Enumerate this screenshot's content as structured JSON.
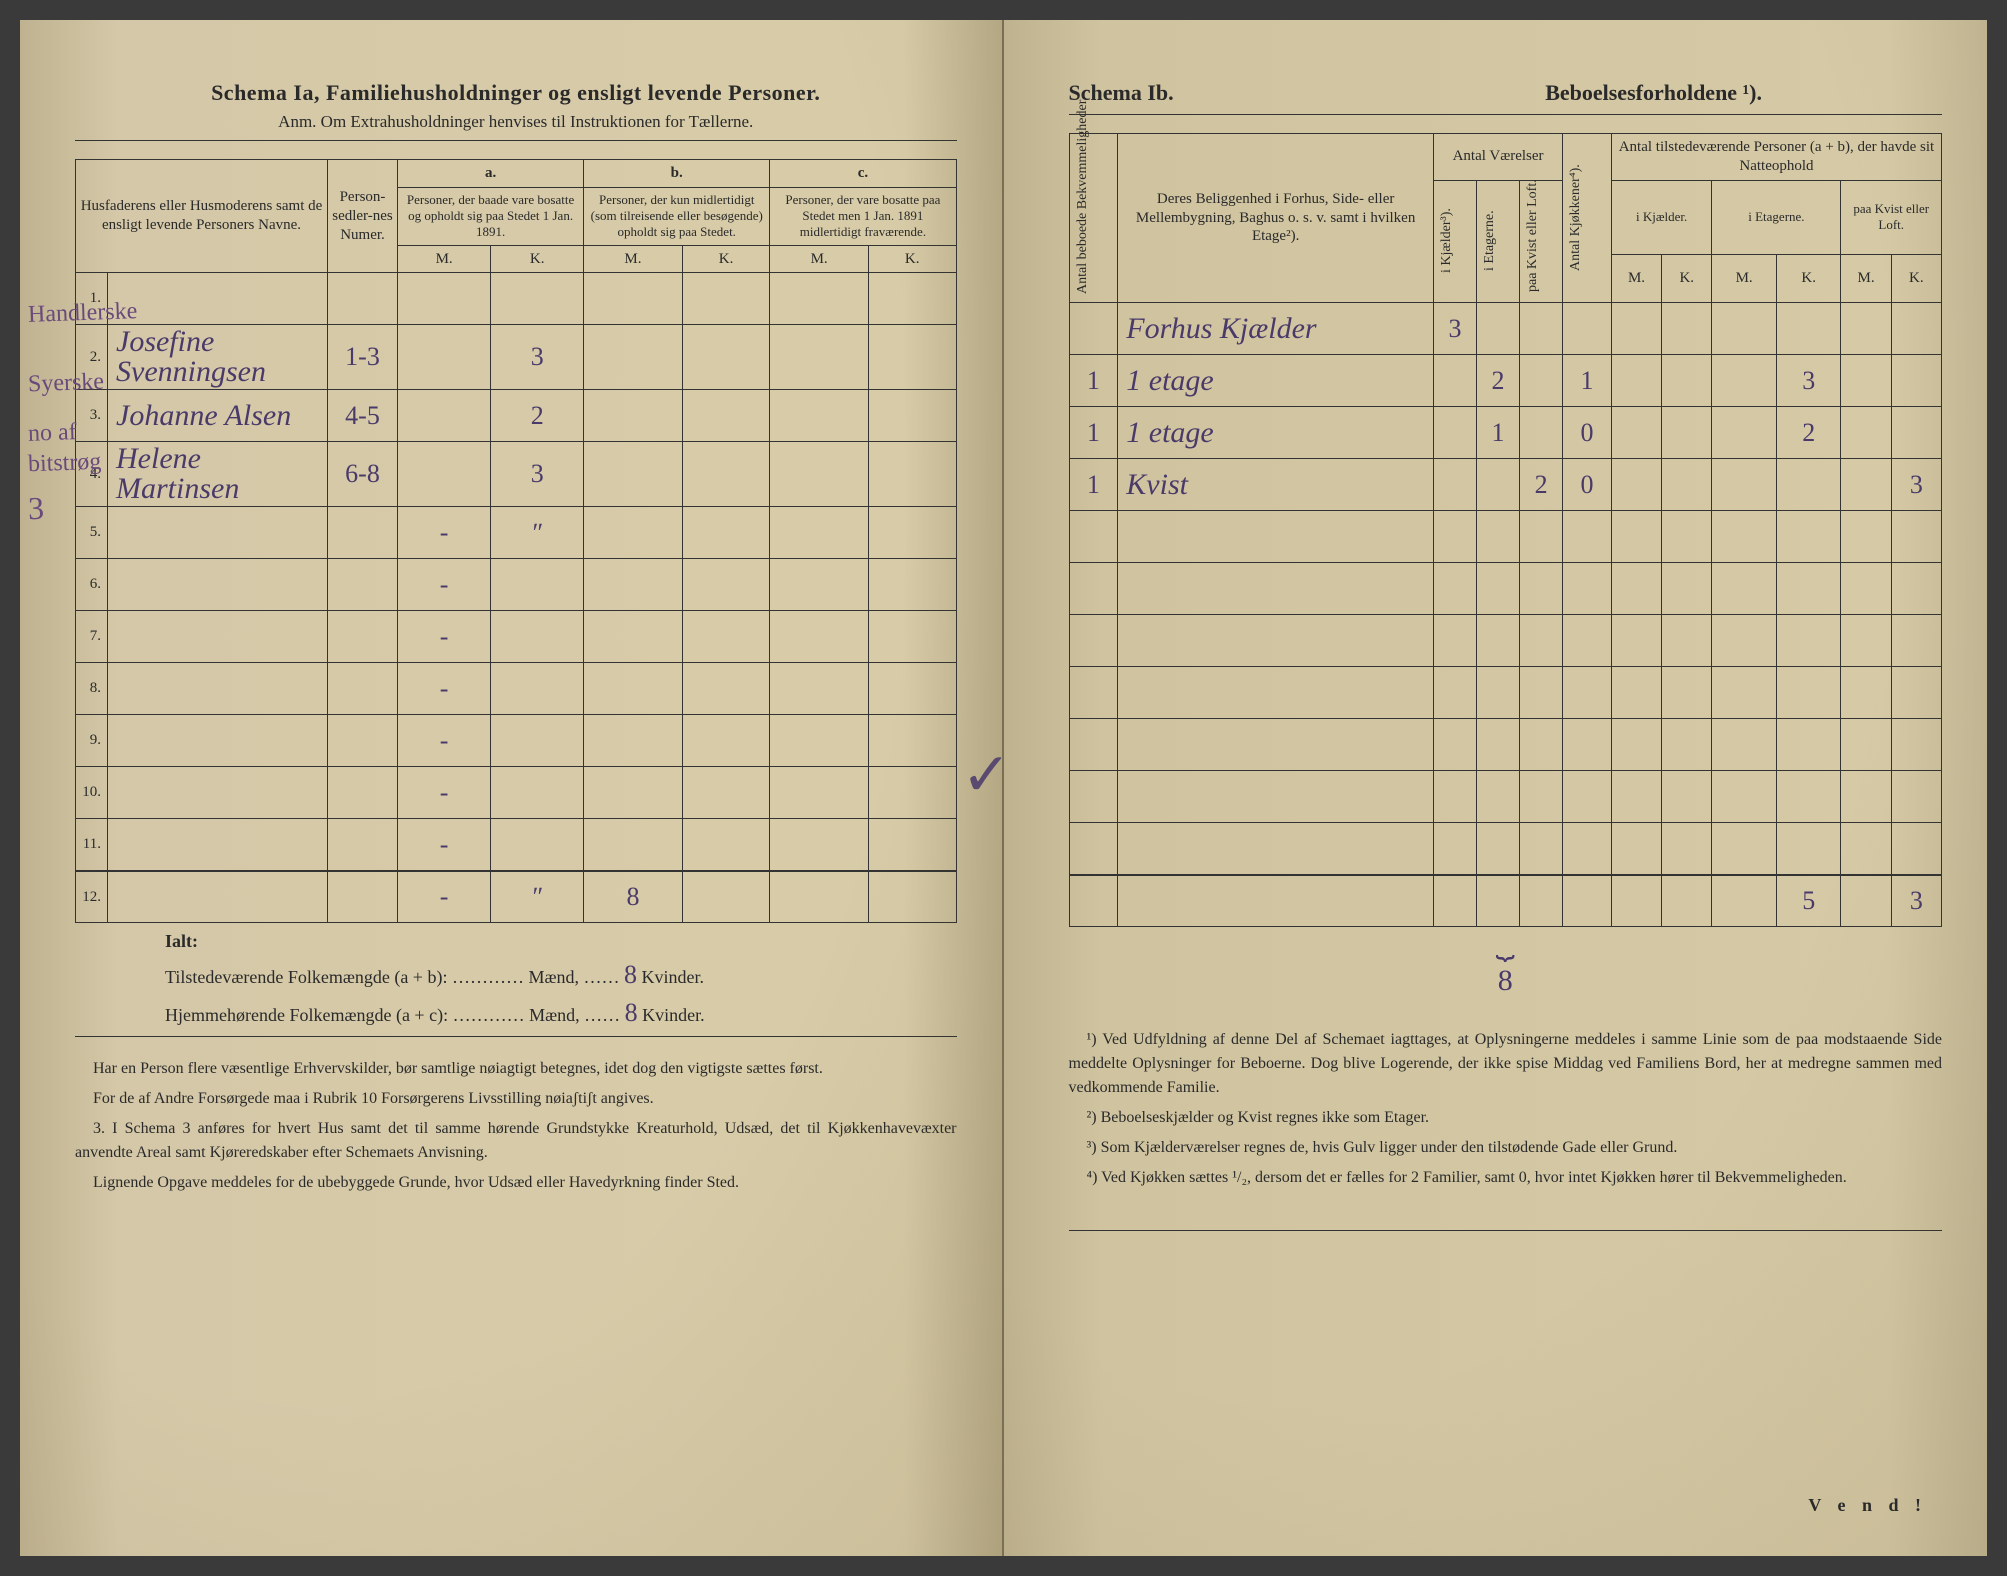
{
  "left": {
    "title": "Schema Ia,  Familiehusholdninger og ensligt levende Personer.",
    "subtitle": "Anm.  Om Extrahusholdninger henvises til Instruktionen for Tællerne.",
    "headers": {
      "name": "Husfaderens eller Husmoderens samt de ensligt levende Personers Navne.",
      "personsedler": "Person-sedler-nes Numer.",
      "a_label": "a.",
      "a": "Personer, der baade vare bosatte og opholdt sig paa Stedet 1 Jan. 1891.",
      "b_label": "b.",
      "b": "Personer, der kun midlertidigt (som tilreisende eller besøgende) opholdt sig paa Stedet.",
      "c_label": "c.",
      "c": "Personer, der vare bosatte paa Stedet men 1 Jan. 1891 midlertidigt fraværende.",
      "m": "M.",
      "k": "K."
    },
    "margin_notes": [
      "Handlerske",
      "Syerske",
      "no af",
      "bitstrøg",
      "3"
    ],
    "rows": [
      {
        "n": "1.",
        "name": "",
        "num": "",
        "a_m": "",
        "a_k": "",
        "b_m": "",
        "b_k": "",
        "c_m": "",
        "c_k": ""
      },
      {
        "n": "2.",
        "name": "Josefine Svenningsen",
        "num": "1-3",
        "a_m": "",
        "a_k": "3",
        "b_m": "",
        "b_k": "",
        "c_m": "",
        "c_k": ""
      },
      {
        "n": "3.",
        "name": "Johanne Alsen",
        "num": "4-5",
        "a_m": "",
        "a_k": "2",
        "b_m": "",
        "b_k": "",
        "c_m": "",
        "c_k": ""
      },
      {
        "n": "4.",
        "name": "Helene Martinsen",
        "num": "6-8",
        "a_m": "",
        "a_k": "3",
        "b_m": "",
        "b_k": "",
        "c_m": "",
        "c_k": ""
      },
      {
        "n": "5.",
        "name": "",
        "num": "",
        "a_m": "-",
        "a_k": "ʺ",
        "b_m": "",
        "b_k": "",
        "c_m": "",
        "c_k": ""
      },
      {
        "n": "6.",
        "name": "",
        "num": "",
        "a_m": "-",
        "a_k": "",
        "b_m": "",
        "b_k": "",
        "c_m": "",
        "c_k": ""
      },
      {
        "n": "7.",
        "name": "",
        "num": "",
        "a_m": "-",
        "a_k": "",
        "b_m": "",
        "b_k": "",
        "c_m": "",
        "c_k": ""
      },
      {
        "n": "8.",
        "name": "",
        "num": "",
        "a_m": "-",
        "a_k": "",
        "b_m": "",
        "b_k": "",
        "c_m": "",
        "c_k": ""
      },
      {
        "n": "9.",
        "name": "",
        "num": "",
        "a_m": "-",
        "a_k": "",
        "b_m": "",
        "b_k": "",
        "c_m": "",
        "c_k": ""
      },
      {
        "n": "10.",
        "name": "",
        "num": "",
        "a_m": "-",
        "a_k": "",
        "b_m": "",
        "b_k": "",
        "c_m": "",
        "c_k": ""
      },
      {
        "n": "11.",
        "name": "",
        "num": "",
        "a_m": "-",
        "a_k": "",
        "b_m": "",
        "b_k": "",
        "c_m": "",
        "c_k": ""
      },
      {
        "n": "12.",
        "name": "",
        "num": "",
        "a_m": "-",
        "a_k": "ʺ",
        "b_m": "8",
        "b_k": "",
        "c_m": "",
        "c_k": ""
      }
    ],
    "ialt_label": "Ialt:",
    "tilstede": "Tilstedeværende Folkemængde (a + b): ………… Mænd, ……",
    "tilstede_k": "8",
    "tilstede_end": " Kvinder.",
    "hjemme": "Hjemmehørende Folkemængde (a + c): ………… Mænd, ……",
    "hjemme_k": "8",
    "hjemme_end": " Kvinder.",
    "footer": [
      "Har en Person flere væsentlige Erhvervskilder, bør samtlige nøiagtigt betegnes, idet dog den vigtigste sættes først.",
      "For de af Andre Forsørgede maa i Rubrik 10 Forsørgerens Livsstilling nøiaʃtiʃt angives.",
      "3. I Schema 3 anføres for hvert Hus samt det til samme hørende Grundstykke Kreaturhold, Udsæd, det til Kjøkkenhavevæxter anvendte Areal samt Kjøreredskaber efter Schemaets Anvisning.",
      "Lignende Opgave meddeles for de ubebyggede Grunde, hvor Udsæd eller Havedyrkning finder Sted."
    ],
    "check": "✓"
  },
  "right": {
    "title_left": "Schema Ib.",
    "title_right": "Beboelsesforholdene ¹).",
    "headers": {
      "antal_beboede": "Antal beboede Bekvemmeligheder.",
      "beliggenhed": "Deres Beliggenhed i Forhus, Side- eller Mellembygning, Baghus o. s. v. samt i hvilken Etage²).",
      "antal_vaer": "Antal Værelser",
      "kjaelder": "i Kjælder³).",
      "etagerne": "i Etagerne.",
      "kvist": "paa Kvist eller Loft.",
      "kjokkener": "Antal Kjøkkener⁴).",
      "tilstede": "Antal tilstedeværende Personer (a + b), der havde sit Natteophold",
      "ikjaelder": "i Kjælder.",
      "ietagerne": "i Etagerne.",
      "paakvist": "paa Kvist eller Loft.",
      "m": "M.",
      "k": "K."
    },
    "rows": [
      {
        "bek": "",
        "bel": "Forhus Kjælder",
        "vk": "3",
        "ve": "",
        "vl": "",
        "kj": "",
        "km": "",
        "kk": "",
        "em": "",
        "ek": "",
        "lm": "",
        "lk": ""
      },
      {
        "bek": "1",
        "bel": "1 etage",
        "vk": "",
        "ve": "2",
        "vl": "",
        "kj": "1",
        "km": "",
        "kk": "",
        "em": "",
        "ek": "3",
        "lm": "",
        "lk": ""
      },
      {
        "bek": "1",
        "bel": "1 etage",
        "vk": "",
        "ve": "1",
        "vl": "",
        "kj": "0",
        "km": "",
        "kk": "",
        "em": "",
        "ek": "2",
        "lm": "",
        "lk": ""
      },
      {
        "bek": "1",
        "bel": "Kvist",
        "vk": "",
        "ve": "",
        "vl": "2",
        "kj": "0",
        "km": "",
        "kk": "",
        "em": "",
        "ek": "",
        "lm": "",
        "lk": "3"
      },
      {
        "bek": "",
        "bel": "",
        "vk": "",
        "ve": "",
        "vl": "",
        "kj": "",
        "km": "",
        "kk": "",
        "em": "",
        "ek": "",
        "lm": "",
        "lk": ""
      },
      {
        "bek": "",
        "bel": "",
        "vk": "",
        "ve": "",
        "vl": "",
        "kj": "",
        "km": "",
        "kk": "",
        "em": "",
        "ek": "",
        "lm": "",
        "lk": ""
      },
      {
        "bek": "",
        "bel": "",
        "vk": "",
        "ve": "",
        "vl": "",
        "kj": "",
        "km": "",
        "kk": "",
        "em": "",
        "ek": "",
        "lm": "",
        "lk": ""
      },
      {
        "bek": "",
        "bel": "",
        "vk": "",
        "ve": "",
        "vl": "",
        "kj": "",
        "km": "",
        "kk": "",
        "em": "",
        "ek": "",
        "lm": "",
        "lk": ""
      },
      {
        "bek": "",
        "bel": "",
        "vk": "",
        "ve": "",
        "vl": "",
        "kj": "",
        "km": "",
        "kk": "",
        "em": "",
        "ek": "",
        "lm": "",
        "lk": ""
      },
      {
        "bek": "",
        "bel": "",
        "vk": "",
        "ve": "",
        "vl": "",
        "kj": "",
        "km": "",
        "kk": "",
        "em": "",
        "ek": "",
        "lm": "",
        "lk": ""
      },
      {
        "bek": "",
        "bel": "",
        "vk": "",
        "ve": "",
        "vl": "",
        "kj": "",
        "km": "",
        "kk": "",
        "em": "",
        "ek": "",
        "lm": "",
        "lk": ""
      },
      {
        "bek": "",
        "bel": "",
        "vk": "",
        "ve": "",
        "vl": "",
        "kj": "",
        "km": "",
        "kk": "",
        "em": "",
        "ek": "5",
        "lm": "",
        "lk": "3"
      }
    ],
    "brace_total": "8",
    "footer": [
      "¹) Ved Udfyldning af denne Del af Schemaet iagttages, at Oplysningerne meddeles i samme Linie som de paa modstaaende Side meddelte Oplysninger for Beboerne. Dog blive Logerende, der ikke spise Middag ved Familiens Bord, her at medregne sammen med vedkommende Familie.",
      "²) Beboelseskjælder og Kvist regnes ikke som Etager.",
      "³) Som Kjælderværelser regnes de, hvis Gulv ligger under den tilstødende Gade eller Grund.",
      "⁴) Ved Kjøkken sættes ¹/₂, dersom det er fælles for 2 Familier, samt 0, hvor intet Kjøkken hører til Bekvemmeligheden."
    ],
    "vend": "V e n d !"
  }
}
